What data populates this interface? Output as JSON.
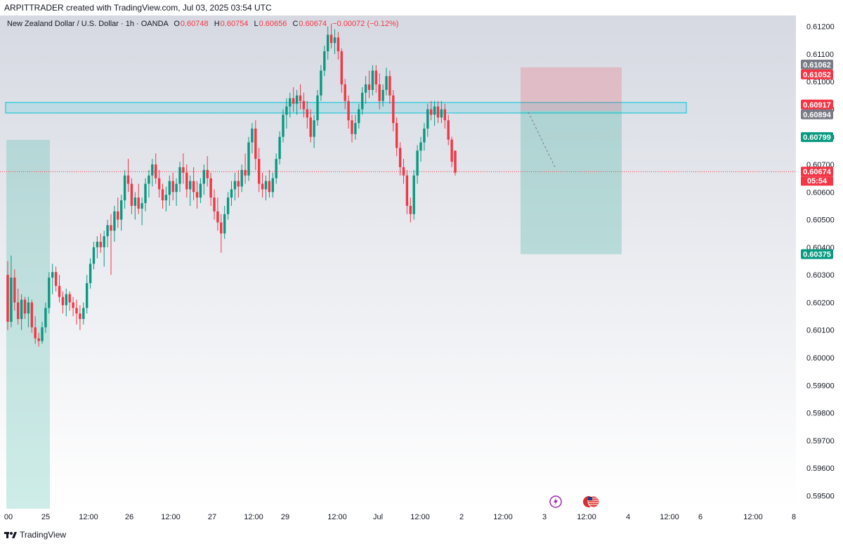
{
  "header": {
    "attribution": "ARPITTRADER created with TradingView.com, Jul 03, 2025 03:54 UTC"
  },
  "legend": {
    "symbol": "New Zealand Dollar / U.S. Dollar · 1h · OANDA",
    "open_label": "O",
    "open": "0.60748",
    "high_label": "H",
    "high": "0.60754",
    "low_label": "L",
    "low": "0.60656",
    "close_label": "C",
    "close": "0.60674",
    "change": "−0.00072 (−0.12%)"
  },
  "footer": {
    "logo_text": "TradingView"
  },
  "colors": {
    "up": "#089981",
    "down": "#f23645",
    "zone": "#26c6da",
    "target": "#22ab94",
    "stop": "#f23645",
    "axis_text": "#131722"
  },
  "chart_data": {
    "type": "candlestick",
    "ylim": [
      0.5945,
      0.6125
    ],
    "x_ticks": [
      "00",
      "25",
      "12:00",
      "26",
      "12:00",
      "27",
      "12:00",
      "29",
      "12:00",
      "Jul",
      "12:00",
      "2",
      "12:00",
      "3",
      "12:00",
      "4",
      "12:00",
      "6",
      "12:00",
      "8"
    ],
    "y_ticks": [
      "0.61200",
      "0.61100",
      "0.61000",
      "0.60900",
      "0.60800",
      "0.60700",
      "0.60600",
      "0.60500",
      "0.60400",
      "0.60300",
      "0.60200",
      "0.60100",
      "0.60000",
      "0.59900",
      "0.59800",
      "0.59700",
      "0.59600",
      "0.59500"
    ],
    "candles": [
      [
        0.603,
        0.6035,
        0.601,
        0.6013
      ],
      [
        0.6013,
        0.6037,
        0.6011,
        0.6029
      ],
      [
        0.6029,
        0.6032,
        0.6017,
        0.602
      ],
      [
        0.602,
        0.6025,
        0.6012,
        0.6014
      ],
      [
        0.6014,
        0.6023,
        0.601,
        0.6021
      ],
      [
        0.6021,
        0.6022,
        0.6014,
        0.6016
      ],
      [
        0.6016,
        0.6022,
        0.6011,
        0.602
      ],
      [
        0.602,
        0.6021,
        0.6009,
        0.6011
      ],
      [
        0.6011,
        0.6015,
        0.6005,
        0.6007
      ],
      [
        0.6007,
        0.6009,
        0.6004,
        0.6006
      ],
      [
        0.6006,
        0.6013,
        0.6005,
        0.6011
      ],
      [
        0.6011,
        0.602,
        0.6009,
        0.6018
      ],
      [
        0.6018,
        0.6031,
        0.6016,
        0.6029
      ],
      [
        0.6029,
        0.6034,
        0.6023,
        0.6031
      ],
      [
        0.6031,
        0.6033,
        0.6024,
        0.6026
      ],
      [
        0.6026,
        0.603,
        0.602,
        0.6022
      ],
      [
        0.6022,
        0.6024,
        0.6016,
        0.6019
      ],
      [
        0.6019,
        0.6025,
        0.6015,
        0.6023
      ],
      [
        0.6023,
        0.6024,
        0.6017,
        0.602
      ],
      [
        0.602,
        0.6022,
        0.6015,
        0.6018
      ],
      [
        0.6018,
        0.6021,
        0.6012,
        0.6016
      ],
      [
        0.6016,
        0.6019,
        0.601,
        0.6014
      ],
      [
        0.6014,
        0.602,
        0.6012,
        0.6018
      ],
      [
        0.6018,
        0.603,
        0.6016,
        0.6027
      ],
      [
        0.6027,
        0.6036,
        0.6025,
        0.6034
      ],
      [
        0.6034,
        0.6042,
        0.6032,
        0.604
      ],
      [
        0.604,
        0.6044,
        0.6036,
        0.6042
      ],
      [
        0.6042,
        0.6045,
        0.6038,
        0.604
      ],
      [
        0.604,
        0.6046,
        0.6033,
        0.6044
      ],
      [
        0.6044,
        0.605,
        0.604,
        0.6048
      ],
      [
        0.6048,
        0.6052,
        0.603,
        0.6046
      ],
      [
        0.6046,
        0.6055,
        0.6042,
        0.6053
      ],
      [
        0.6053,
        0.6058,
        0.6047,
        0.605
      ],
      [
        0.605,
        0.6059,
        0.6046,
        0.6057
      ],
      [
        0.6057,
        0.6068,
        0.6054,
        0.6066
      ],
      [
        0.6066,
        0.6072,
        0.606,
        0.6063
      ],
      [
        0.6063,
        0.6065,
        0.6052,
        0.6055
      ],
      [
        0.6055,
        0.606,
        0.605,
        0.6058
      ],
      [
        0.6058,
        0.6063,
        0.6052,
        0.6054
      ],
      [
        0.6054,
        0.6058,
        0.6048,
        0.6056
      ],
      [
        0.6056,
        0.6065,
        0.6053,
        0.6063
      ],
      [
        0.6063,
        0.6068,
        0.6058,
        0.6066
      ],
      [
        0.6066,
        0.6072,
        0.6062,
        0.607
      ],
      [
        0.607,
        0.6074,
        0.6063,
        0.6065
      ],
      [
        0.6065,
        0.6068,
        0.6058,
        0.6061
      ],
      [
        0.6061,
        0.6063,
        0.6054,
        0.6057
      ],
      [
        0.6057,
        0.6062,
        0.6053,
        0.6059
      ],
      [
        0.6059,
        0.6066,
        0.6055,
        0.6064
      ],
      [
        0.6064,
        0.6067,
        0.6057,
        0.606
      ],
      [
        0.606,
        0.6065,
        0.6055,
        0.6063
      ],
      [
        0.6063,
        0.6071,
        0.606,
        0.6069
      ],
      [
        0.6069,
        0.6074,
        0.6063,
        0.6067
      ],
      [
        0.6067,
        0.607,
        0.6058,
        0.6061
      ],
      [
        0.6061,
        0.6066,
        0.6055,
        0.6064
      ],
      [
        0.6064,
        0.6069,
        0.6057,
        0.606
      ],
      [
        0.606,
        0.6064,
        0.6054,
        0.6058
      ],
      [
        0.6058,
        0.6065,
        0.6056,
        0.6063
      ],
      [
        0.6063,
        0.607,
        0.6059,
        0.6068
      ],
      [
        0.6068,
        0.6073,
        0.6062,
        0.6065
      ],
      [
        0.6065,
        0.6067,
        0.6055,
        0.6058
      ],
      [
        0.6058,
        0.6061,
        0.605,
        0.6053
      ],
      [
        0.6053,
        0.6058,
        0.6046,
        0.6049
      ],
      [
        0.6049,
        0.6052,
        0.6038,
        0.6045
      ],
      [
        0.6045,
        0.6055,
        0.6043,
        0.6052
      ],
      [
        0.6052,
        0.606,
        0.605,
        0.6058
      ],
      [
        0.6058,
        0.6064,
        0.6055,
        0.6061
      ],
      [
        0.6061,
        0.6067,
        0.6057,
        0.6064
      ],
      [
        0.6064,
        0.6068,
        0.6058,
        0.6062
      ],
      [
        0.6062,
        0.607,
        0.606,
        0.6068
      ],
      [
        0.6068,
        0.6074,
        0.6063,
        0.6066
      ],
      [
        0.6066,
        0.608,
        0.6064,
        0.6078
      ],
      [
        0.6078,
        0.6085,
        0.6074,
        0.6083
      ],
      [
        0.6083,
        0.6086,
        0.6068,
        0.6072
      ],
      [
        0.6072,
        0.6076,
        0.606,
        0.6063
      ],
      [
        0.6063,
        0.6067,
        0.6058,
        0.6061
      ],
      [
        0.6061,
        0.6066,
        0.6057,
        0.6064
      ],
      [
        0.6064,
        0.6068,
        0.6058,
        0.606
      ],
      [
        0.606,
        0.6067,
        0.6058,
        0.6065
      ],
      [
        0.6065,
        0.6074,
        0.6063,
        0.6072
      ],
      [
        0.6072,
        0.6082,
        0.607,
        0.608
      ],
      [
        0.608,
        0.609,
        0.6078,
        0.6088
      ],
      [
        0.6088,
        0.6094,
        0.6083,
        0.6091
      ],
      [
        0.6091,
        0.6096,
        0.6087,
        0.6094
      ],
      [
        0.6094,
        0.6098,
        0.6089,
        0.6092
      ],
      [
        0.6092,
        0.6097,
        0.6088,
        0.6095
      ],
      [
        0.6095,
        0.6099,
        0.609,
        0.6093
      ],
      [
        0.6093,
        0.6096,
        0.6087,
        0.609
      ],
      [
        0.609,
        0.6093,
        0.6083,
        0.6087
      ],
      [
        0.6087,
        0.609,
        0.6078,
        0.608
      ],
      [
        0.608,
        0.6088,
        0.6076,
        0.6086
      ],
      [
        0.6086,
        0.6097,
        0.6084,
        0.6095
      ],
      [
        0.6095,
        0.6106,
        0.6093,
        0.6104
      ],
      [
        0.6104,
        0.6113,
        0.6102,
        0.6111
      ],
      [
        0.6111,
        0.612,
        0.6108,
        0.6117
      ],
      [
        0.6117,
        0.6121,
        0.6112,
        0.6114
      ],
      [
        0.6114,
        0.6119,
        0.611,
        0.6116
      ],
      [
        0.6116,
        0.6118,
        0.6108,
        0.6111
      ],
      [
        0.6111,
        0.6112,
        0.6096,
        0.6099
      ],
      [
        0.6099,
        0.6101,
        0.609,
        0.6093
      ],
      [
        0.6093,
        0.6095,
        0.6083,
        0.6086
      ],
      [
        0.6086,
        0.6088,
        0.6078,
        0.6081
      ],
      [
        0.6081,
        0.6088,
        0.6079,
        0.6085
      ],
      [
        0.6085,
        0.6092,
        0.6083,
        0.609
      ],
      [
        0.609,
        0.6098,
        0.6088,
        0.6096
      ],
      [
        0.6096,
        0.6102,
        0.6092,
        0.6099
      ],
      [
        0.6099,
        0.6104,
        0.6094,
        0.6097
      ],
      [
        0.6097,
        0.6106,
        0.6095,
        0.6104
      ],
      [
        0.6104,
        0.6106,
        0.6096,
        0.6099
      ],
      [
        0.6099,
        0.6103,
        0.609,
        0.6093
      ],
      [
        0.6093,
        0.6099,
        0.6091,
        0.6097
      ],
      [
        0.6097,
        0.6105,
        0.6095,
        0.6102
      ],
      [
        0.6102,
        0.6104,
        0.6092,
        0.6095
      ],
      [
        0.6095,
        0.6097,
        0.6082,
        0.6085
      ],
      [
        0.6085,
        0.6087,
        0.6073,
        0.6076
      ],
      [
        0.6076,
        0.6078,
        0.6066,
        0.6069
      ],
      [
        0.6069,
        0.6072,
        0.6063,
        0.6066
      ],
      [
        0.6066,
        0.6068,
        0.6052,
        0.6055
      ],
      [
        0.6055,
        0.6058,
        0.6049,
        0.6052
      ],
      [
        0.6052,
        0.6068,
        0.605,
        0.6066
      ],
      [
        0.6066,
        0.6077,
        0.6063,
        0.6075
      ],
      [
        0.6075,
        0.608,
        0.6071,
        0.6078
      ],
      [
        0.6078,
        0.6085,
        0.6075,
        0.6083
      ],
      [
        0.6083,
        0.6092,
        0.608,
        0.609
      ],
      [
        0.609,
        0.6093,
        0.6086,
        0.6088
      ],
      [
        0.6088,
        0.6093,
        0.6084,
        0.6091
      ],
      [
        0.6091,
        0.6093,
        0.6085,
        0.6087
      ],
      [
        0.6087,
        0.6093,
        0.6085,
        0.609
      ],
      [
        0.609,
        0.6092,
        0.6083,
        0.6086
      ],
      [
        0.6086,
        0.6088,
        0.6077,
        0.6079
      ],
      [
        0.6079,
        0.608,
        0.6069,
        0.6071
      ],
      [
        0.6075,
        0.6075,
        0.6066,
        0.6067
      ]
    ],
    "horizontal_zone": {
      "top": 0.60917,
      "bottom": 0.60894
    },
    "position": {
      "entry": 0.60894,
      "stop": 0.61052,
      "target": 0.60375
    },
    "current_price": 0.60674,
    "price_badges": [
      {
        "text": "0.61062",
        "value": 0.61062,
        "color": "#787b86"
      },
      {
        "text": "0.61052",
        "value": 0.61052,
        "color": "#f23645"
      },
      {
        "text": "0.60917",
        "value": 0.60917,
        "color": "#f23645"
      },
      {
        "text": "0.60894",
        "value": 0.60894,
        "color": "#787b86"
      },
      {
        "text": "0.60799",
        "value": 0.60799,
        "color": "#089981"
      },
      {
        "text": "0.60674",
        "value": 0.60674,
        "color": "#f23645"
      },
      {
        "text": "0.60375",
        "value": 0.60375,
        "color": "#089981"
      }
    ],
    "countdown": "05:54"
  }
}
